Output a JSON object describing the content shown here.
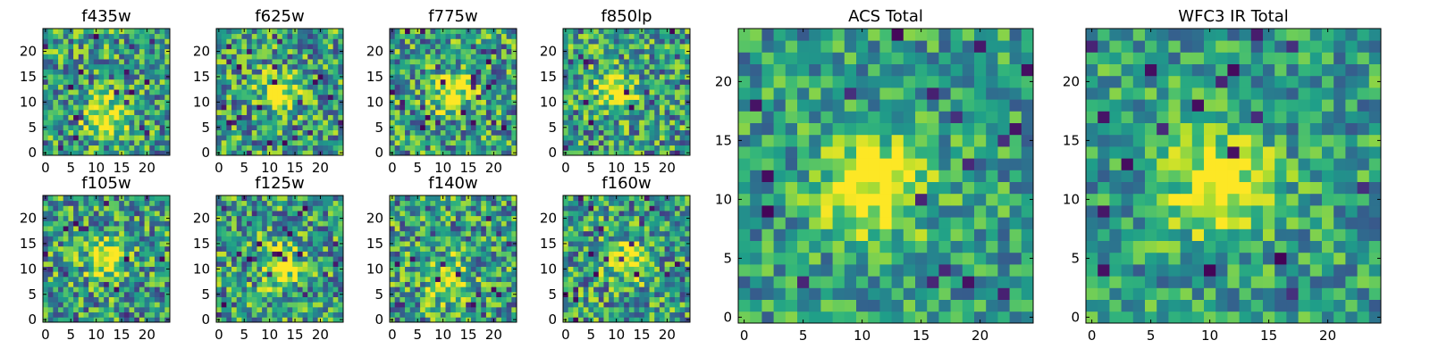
{
  "chart_data": [
    {
      "type": "heatmap",
      "title": "f435w",
      "grid_size": 25,
      "x_ticks": [
        0,
        5,
        10,
        15,
        20
      ],
      "y_ticks": [
        0,
        5,
        10,
        15,
        20
      ],
      "peak": [
        12,
        7
      ],
      "colormap": "viridis"
    },
    {
      "type": "heatmap",
      "title": "f625w",
      "grid_size": 25,
      "x_ticks": [
        0,
        5,
        10,
        15,
        20
      ],
      "y_ticks": [
        0,
        5,
        10,
        15,
        20
      ],
      "peak": [
        12,
        12
      ],
      "colormap": "viridis"
    },
    {
      "type": "heatmap",
      "title": "f775w",
      "grid_size": 25,
      "x_ticks": [
        0,
        5,
        10,
        15,
        20
      ],
      "y_ticks": [
        0,
        5,
        10,
        15,
        20
      ],
      "peak": [
        12,
        12
      ],
      "colormap": "viridis"
    },
    {
      "type": "heatmap",
      "title": "f850lp",
      "grid_size": 25,
      "x_ticks": [
        0,
        5,
        10,
        15,
        20
      ],
      "y_ticks": [
        0,
        5,
        10,
        15,
        20
      ],
      "peak": [
        10,
        12
      ],
      "colormap": "viridis"
    },
    {
      "type": "heatmap",
      "title": "f105w",
      "grid_size": 25,
      "x_ticks": [
        0,
        5,
        10,
        15,
        20
      ],
      "y_ticks": [
        0,
        5,
        10,
        15,
        20
      ],
      "peak": [
        12,
        12
      ],
      "colormap": "viridis"
    },
    {
      "type": "heatmap",
      "title": "f125w",
      "grid_size": 25,
      "x_ticks": [
        0,
        5,
        10,
        15,
        20
      ],
      "y_ticks": [
        0,
        5,
        10,
        15,
        20
      ],
      "peak": [
        12,
        11
      ],
      "colormap": "viridis"
    },
    {
      "type": "heatmap",
      "title": "f140w",
      "grid_size": 25,
      "x_ticks": [
        0,
        5,
        10,
        15,
        20
      ],
      "y_ticks": [
        0,
        5,
        10,
        15,
        20
      ],
      "peak": [
        11,
        8
      ],
      "colormap": "viridis"
    },
    {
      "type": "heatmap",
      "title": "f160w",
      "grid_size": 25,
      "x_ticks": [
        0,
        5,
        10,
        15,
        20
      ],
      "y_ticks": [
        0,
        5,
        10,
        15,
        20
      ],
      "peak": [
        12,
        12
      ],
      "colormap": "viridis"
    },
    {
      "type": "heatmap",
      "title": "ACS Total",
      "grid_size": 25,
      "x_ticks": [
        0,
        5,
        10,
        15,
        20
      ],
      "y_ticks": [
        0,
        5,
        10,
        15,
        20
      ],
      "peak": [
        11,
        11
      ],
      "colormap": "viridis"
    },
    {
      "type": "heatmap",
      "title": "WFC3 IR Total",
      "grid_size": 25,
      "x_ticks": [
        0,
        5,
        10,
        15,
        20
      ],
      "y_ticks": [
        0,
        5,
        10,
        15,
        20
      ],
      "peak": [
        11,
        11
      ],
      "colormap": "viridis"
    }
  ]
}
